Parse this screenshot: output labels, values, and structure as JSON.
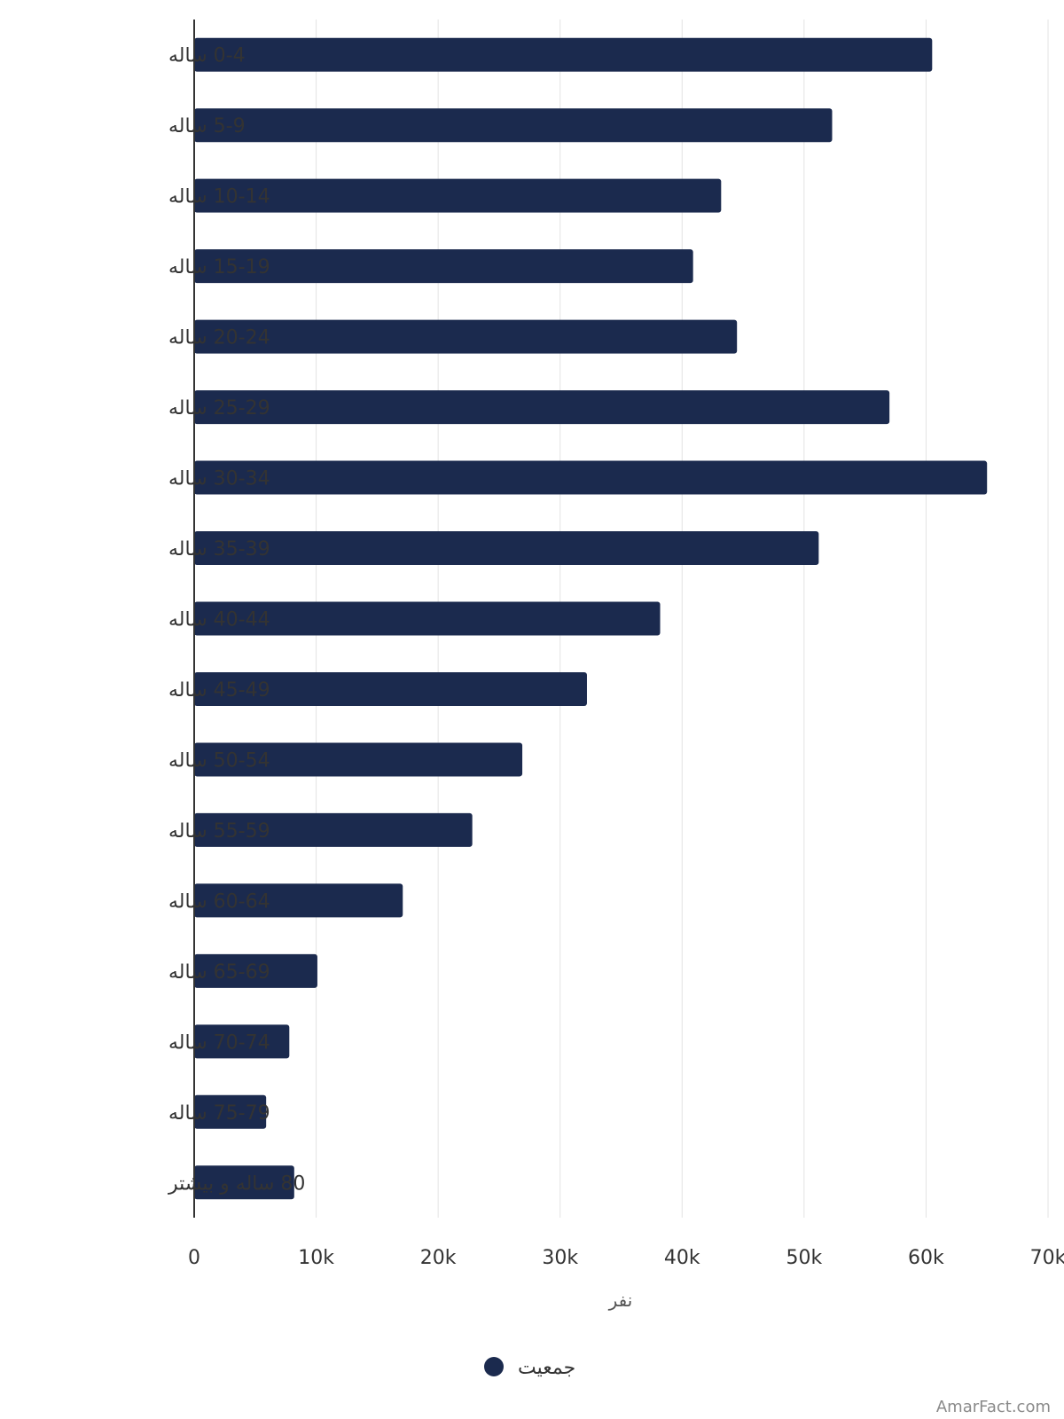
{
  "chart_data": {
    "type": "bar",
    "orientation": "horizontal",
    "categories": [
      "0-4 ساله",
      "5-9 ساله",
      "10-14 ساله",
      "15-19 ساله",
      "20-24 ساله",
      "25-29 ساله",
      "30-34 ساله",
      "35-39 ساله",
      "40-44 ساله",
      "45-49 ساله",
      "50-54 ساله",
      "55-59 ساله",
      "60-64 ساله",
      "65-69 ساله",
      "70-74 ساله",
      "75-79 ساله",
      "80 ساله و بیشتر"
    ],
    "series": [
      {
        "name": "جمعیت",
        "color": "#1b2a4e",
        "values": [
          60500,
          52300,
          43200,
          40900,
          44500,
          57000,
          65000,
          51200,
          38200,
          32200,
          26900,
          22800,
          17100,
          10100,
          7800,
          5900,
          8200
        ]
      }
    ],
    "xlabel": "نفر",
    "ylabel": "",
    "xlim": [
      0,
      70000
    ],
    "xticks": [
      {
        "value": 0,
        "label": "0"
      },
      {
        "value": 10000,
        "label": "10k"
      },
      {
        "value": 20000,
        "label": "20k"
      },
      {
        "value": 30000,
        "label": "30k"
      },
      {
        "value": 40000,
        "label": "40k"
      },
      {
        "value": 50000,
        "label": "50k"
      },
      {
        "value": 60000,
        "label": "60k"
      },
      {
        "value": 70000,
        "label": "70k"
      }
    ],
    "grid": "vertical",
    "legend": "bottom-center"
  },
  "watermark": "AmarFact.com",
  "colors": {
    "bar": "#1b2a4e",
    "grid": "#e3e3e3",
    "axis": "#333333"
  }
}
